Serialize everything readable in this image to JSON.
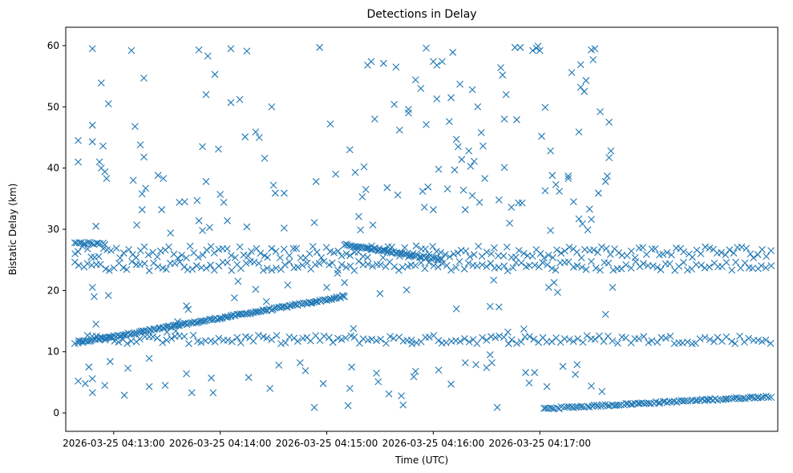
{
  "chart_data": {
    "type": "scatter",
    "title": "Detections in Delay",
    "xlabel": "Time (UTC)",
    "ylabel": "Bistatic Delay (km)",
    "marker": "x",
    "color": "#1f77b4",
    "x_unit": "seconds after 2026-03-25 04:12:00",
    "xlim": [
      33,
      434
    ],
    "ylim": [
      -3,
      63
    ],
    "x_ticks": [
      {
        "value": 60,
        "label": "2026-03-25 04:13:00"
      },
      {
        "value": 120,
        "label": "2026-03-25 04:14:00"
      },
      {
        "value": 180,
        "label": "2026-03-25 04:15:00"
      },
      {
        "value": 240,
        "label": "2026-03-25 04:16:00"
      },
      {
        "value": 300,
        "label": "2026-03-25 04:17:00"
      }
    ],
    "y_ticks": [
      {
        "value": 0,
        "label": "0"
      },
      {
        "value": 10,
        "label": "10"
      },
      {
        "value": 20,
        "label": "20"
      },
      {
        "value": 30,
        "label": "30"
      },
      {
        "value": 40,
        "label": "40"
      },
      {
        "value": 50,
        "label": "50"
      },
      {
        "value": 60,
        "label": "60"
      }
    ],
    "tracks": [
      {
        "name": "rising track 04:13-04:15",
        "t_start": 40,
        "t_end": 190,
        "y_start": 11.5,
        "y_end": 19.0,
        "count": 150
      },
      {
        "name": "rising track 04:17+",
        "t_start": 302,
        "t_end": 430,
        "y_start": 0.7,
        "y_end": 2.7,
        "count": 100
      },
      {
        "name": "band ~12 km",
        "t_start": 38,
        "t_end": 430,
        "y_start": 12.0,
        "y_end": 12.0,
        "count": 160,
        "jitter": 0.7
      },
      {
        "name": "band ~24 km",
        "t_start": 38,
        "t_end": 430,
        "y_start": 24.0,
        "y_end": 24.0,
        "count": 160,
        "jitter": 0.8
      },
      {
        "name": "band ~26 km",
        "t_start": 38,
        "t_end": 430,
        "y_start": 26.3,
        "y_end": 26.3,
        "count": 170,
        "jitter": 1.0
      },
      {
        "name": "track 04:15-04:16",
        "t_start": 190,
        "t_end": 245,
        "y_start": 27.5,
        "y_end": 25.0,
        "count": 60
      },
      {
        "name": "band ~28 km",
        "t_start": 38,
        "t_end": 55,
        "y_start": 27.8,
        "y_end": 27.6,
        "count": 15
      }
    ],
    "points": [
      [
        40,
        44.5
      ],
      [
        40,
        41
      ],
      [
        40,
        5.2
      ],
      [
        44,
        4.8
      ],
      [
        48,
        3.3
      ],
      [
        48,
        59.5
      ],
      [
        48,
        47
      ],
      [
        48,
        44.3
      ],
      [
        50,
        30.5
      ],
      [
        52,
        41
      ],
      [
        53,
        40
      ],
      [
        53,
        53.9
      ],
      [
        54,
        43.6
      ],
      [
        55,
        39.4
      ],
      [
        56,
        38.3
      ],
      [
        57,
        50.5
      ],
      [
        58,
        8.4
      ],
      [
        57,
        19.2
      ],
      [
        48,
        20.5
      ],
      [
        49,
        19
      ],
      [
        55,
        4.5
      ],
      [
        50,
        14.5
      ],
      [
        48,
        5.6
      ],
      [
        46,
        7.5
      ],
      [
        66,
        2.9
      ],
      [
        68,
        7.3
      ],
      [
        70,
        59.2
      ],
      [
        71,
        38
      ],
      [
        72,
        46.8
      ],
      [
        73,
        30.7
      ],
      [
        75,
        43.8
      ],
      [
        76,
        35.8
      ],
      [
        76,
        33.2
      ],
      [
        77,
        54.7
      ],
      [
        77,
        41.8
      ],
      [
        78,
        36.7
      ],
      [
        80,
        8.9
      ],
      [
        80,
        4.3
      ],
      [
        85,
        38.8
      ],
      [
        87,
        33.2
      ],
      [
        88,
        38.3
      ],
      [
        89,
        4.5
      ],
      [
        90,
        13.2
      ],
      [
        92,
        29.4
      ],
      [
        95,
        13.4
      ],
      [
        96,
        14.9
      ],
      [
        97,
        34.4
      ],
      [
        100,
        34.5
      ],
      [
        101,
        17.5
      ],
      [
        101,
        6.4
      ],
      [
        102,
        16.9
      ],
      [
        104,
        3.3
      ],
      [
        107,
        34.7
      ],
      [
        108,
        31.4
      ],
      [
        108,
        59.3
      ],
      [
        110,
        43.5
      ],
      [
        110,
        29.8
      ],
      [
        112,
        52
      ],
      [
        112,
        37.8
      ],
      [
        113,
        58.3
      ],
      [
        114,
        30.3
      ],
      [
        115,
        5.7
      ],
      [
        116,
        3.3
      ],
      [
        117,
        55.3
      ],
      [
        119,
        43.1
      ],
      [
        120,
        35.7
      ],
      [
        122,
        34.4
      ],
      [
        124,
        31.4
      ],
      [
        126,
        59.5
      ],
      [
        126,
        50.7
      ],
      [
        128,
        18.8
      ],
      [
        130,
        21.5
      ],
      [
        131,
        51.2
      ],
      [
        134,
        45.1
      ],
      [
        135,
        59.1
      ],
      [
        135,
        30.4
      ],
      [
        136,
        5.8
      ],
      [
        140,
        45.9
      ],
      [
        140,
        20.2
      ],
      [
        142,
        45
      ],
      [
        145,
        41.6
      ],
      [
        146,
        18.2
      ],
      [
        148,
        4
      ],
      [
        149,
        50
      ],
      [
        150,
        37.2
      ],
      [
        151,
        35.9
      ],
      [
        153,
        7.8
      ],
      [
        156,
        30.2
      ],
      [
        156,
        35.9
      ],
      [
        158,
        20.9
      ],
      [
        165,
        8.2
      ],
      [
        168,
        6.9
      ],
      [
        173,
        0.9
      ],
      [
        173,
        31.1
      ],
      [
        174,
        37.8
      ],
      [
        176,
        59.7
      ],
      [
        178,
        4.8
      ],
      [
        180,
        20.5
      ],
      [
        182,
        47.2
      ],
      [
        185,
        39
      ],
      [
        186,
        22.8
      ],
      [
        189,
        19.2
      ],
      [
        190,
        21.3
      ],
      [
        192,
        1.2
      ],
      [
        193,
        43
      ],
      [
        193,
        4
      ],
      [
        194,
        7.5
      ],
      [
        195,
        13.8
      ],
      [
        196,
        39.3
      ],
      [
        198,
        32.1
      ],
      [
        199,
        29.9
      ],
      [
        200,
        35.3
      ],
      [
        201,
        40.2
      ],
      [
        202,
        36.5
      ],
      [
        203,
        56.8
      ],
      [
        205,
        57.4
      ],
      [
        206,
        30.7
      ],
      [
        207,
        48
      ],
      [
        208,
        6.5
      ],
      [
        209,
        5.1
      ],
      [
        210,
        19.5
      ],
      [
        212,
        57.1
      ],
      [
        214,
        36.8
      ],
      [
        215,
        3.1
      ],
      [
        218,
        50.4
      ],
      [
        219,
        56.5
      ],
      [
        220,
        35.6
      ],
      [
        221,
        46.2
      ],
      [
        222,
        2.8
      ],
      [
        223,
        1.3
      ],
      [
        225,
        20.1
      ],
      [
        226,
        49.6
      ],
      [
        226,
        49
      ],
      [
        228,
        11.3
      ],
      [
        229,
        5.9
      ],
      [
        230,
        54.4
      ],
      [
        230,
        6.8
      ],
      [
        233,
        53
      ],
      [
        234,
        36.2
      ],
      [
        235,
        33.6
      ],
      [
        236,
        59.6
      ],
      [
        236,
        47.1
      ],
      [
        237,
        36.9
      ],
      [
        240,
        57.4
      ],
      [
        240,
        33.2
      ],
      [
        242,
        51.3
      ],
      [
        242,
        56.8
      ],
      [
        243,
        39.8
      ],
      [
        243,
        7
      ],
      [
        245,
        57.4
      ],
      [
        248,
        36.6
      ],
      [
        249,
        47.6
      ],
      [
        250,
        51.5
      ],
      [
        250,
        4.7
      ],
      [
        251,
        58.9
      ],
      [
        252,
        39.7
      ],
      [
        253,
        44.7
      ],
      [
        253,
        17
      ],
      [
        254,
        43.5
      ],
      [
        255,
        53.7
      ],
      [
        256,
        41.4
      ],
      [
        257,
        36.4
      ],
      [
        258,
        33.2
      ],
      [
        258,
        8.2
      ],
      [
        260,
        42.8
      ],
      [
        261,
        40.3
      ],
      [
        262,
        52.8
      ],
      [
        262,
        35.5
      ],
      [
        263,
        41.1
      ],
      [
        264,
        7.9
      ],
      [
        265,
        50
      ],
      [
        266,
        34.4
      ],
      [
        267,
        45.8
      ],
      [
        268,
        43.6
      ],
      [
        269,
        38.3
      ],
      [
        270,
        7.4
      ],
      [
        272,
        9.5
      ],
      [
        272,
        17.4
      ],
      [
        273,
        8.2
      ],
      [
        274,
        21.7
      ],
      [
        276,
        0.9
      ],
      [
        277,
        34.8
      ],
      [
        277,
        17.3
      ],
      [
        278,
        56.4
      ],
      [
        279,
        55.2
      ],
      [
        280,
        48
      ],
      [
        280,
        40.1
      ],
      [
        281,
        52
      ],
      [
        282,
        13.2
      ],
      [
        283,
        31
      ],
      [
        284,
        33.6
      ],
      [
        286,
        59.7
      ],
      [
        287,
        47.9
      ],
      [
        288,
        34.3
      ],
      [
        289,
        59.7
      ],
      [
        290,
        34.3
      ],
      [
        291,
        13.7
      ],
      [
        292,
        6.6
      ],
      [
        294,
        4.9
      ],
      [
        296,
        59.2
      ],
      [
        297,
        6.6
      ],
      [
        298,
        59.6
      ],
      [
        299,
        59.9
      ],
      [
        300,
        59.2
      ],
      [
        301,
        45.2
      ],
      [
        303,
        49.9
      ],
      [
        303,
        36.3
      ],
      [
        304,
        4.3
      ],
      [
        305,
        20.5
      ],
      [
        306,
        42.8
      ],
      [
        306,
        29.8
      ],
      [
        307,
        38.8
      ],
      [
        308,
        21.3
      ],
      [
        309,
        37.3
      ],
      [
        310,
        19.7
      ],
      [
        311,
        36.2
      ],
      [
        313,
        7.6
      ],
      [
        316,
        38.7
      ],
      [
        316,
        38.3
      ],
      [
        318,
        55.6
      ],
      [
        319,
        34.5
      ],
      [
        320,
        6.3
      ],
      [
        321,
        7.9
      ],
      [
        322,
        45.9
      ],
      [
        322,
        31.7
      ],
      [
        323,
        56.9
      ],
      [
        323,
        53.2
      ],
      [
        324,
        30.9
      ],
      [
        325,
        52.5
      ],
      [
        326,
        54.3
      ],
      [
        327,
        29.9
      ],
      [
        328,
        33.3
      ],
      [
        329,
        31.6
      ],
      [
        329,
        59.3
      ],
      [
        330,
        57.7
      ],
      [
        331,
        59.5
      ],
      [
        333,
        35.9
      ],
      [
        334,
        49.2
      ],
      [
        337,
        37.8
      ],
      [
        338,
        38.7
      ],
      [
        339,
        47.5
      ],
      [
        339,
        41.7
      ],
      [
        340,
        42.8
      ],
      [
        341,
        20.5
      ],
      [
        337,
        16.1
      ],
      [
        335,
        3.5
      ],
      [
        329,
        4.4
      ]
    ]
  }
}
